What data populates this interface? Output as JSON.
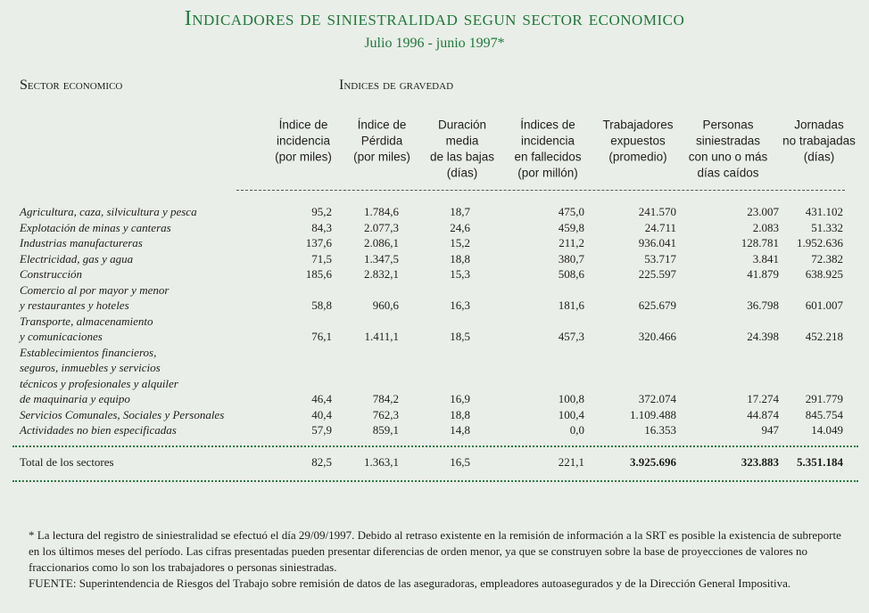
{
  "header": {
    "title": "Indicadores de siniestralidad segun sector economico",
    "subtitle": "Julio 1996 - junio 1997*"
  },
  "table": {
    "row_heading": "Sector economico",
    "group_heading": "Indices de gravedad",
    "columns": [
      [
        "Índice de",
        "incidencia",
        "(por miles)"
      ],
      [
        "Índice de",
        "Pérdida",
        "(por miles)"
      ],
      [
        "Duración",
        "media",
        "de las bajas",
        "(días)"
      ],
      [
        "Índices de",
        "incidencia",
        "en fallecidos",
        "(por millón)"
      ],
      [
        "Trabajadores",
        "expuestos",
        "(promedio)"
      ],
      [
        "Personas",
        "siniestradas",
        "con uno o más",
        "días caídos"
      ],
      [
        "Jornadas",
        "no trabajadas",
        "(días)"
      ]
    ],
    "rows": [
      {
        "label": [
          "Agricultura, caza, silvicultura y pesca"
        ],
        "values": [
          "95,2",
          "1.784,6",
          "18,7",
          "475,0",
          "241.570",
          "23.007",
          "431.102"
        ]
      },
      {
        "label": [
          "Explotación de minas y canteras"
        ],
        "values": [
          "84,3",
          "2.077,3",
          "24,6",
          "459,8",
          "24.711",
          "2.083",
          "51.332"
        ]
      },
      {
        "label": [
          "Industrias manufactureras"
        ],
        "values": [
          "137,6",
          "2.086,1",
          "15,2",
          "211,2",
          "936.041",
          "128.781",
          "1.952.636"
        ]
      },
      {
        "label": [
          "Electricidad, gas y agua"
        ],
        "values": [
          "71,5",
          "1.347,5",
          "18,8",
          "380,7",
          "53.717",
          "3.841",
          "72.382"
        ]
      },
      {
        "label": [
          "Construcción"
        ],
        "values": [
          "185,6",
          "2.832,1",
          "15,3",
          "508,6",
          "225.597",
          "41.879",
          "638.925"
        ]
      },
      {
        "label": [
          "Comercio al por mayor y menor",
          "y restaurantes y hoteles"
        ],
        "values": [
          "58,8",
          "960,6",
          "16,3",
          "181,6",
          "625.679",
          "36.798",
          "601.007"
        ]
      },
      {
        "label": [
          "Transporte, almacenamiento",
          "y comunicaciones"
        ],
        "values": [
          "76,1",
          "1.411,1",
          "18,5",
          "457,3",
          "320.466",
          "24.398",
          "452.218"
        ]
      },
      {
        "label": [
          "Establecimientos financieros,",
          "seguros, inmuebles y servicios",
          "técnicos y profesionales y alquiler",
          "de maquinaria y equipo"
        ],
        "values": [
          "46,4",
          "784,2",
          "16,9",
          "100,8",
          "372.074",
          "17.274",
          "291.779"
        ]
      },
      {
        "label": [
          "Servicios Comunales, Sociales y Personales"
        ],
        "values": [
          "40,4",
          "762,3",
          "18,8",
          "100,4",
          "1.109.488",
          "44.874",
          "845.754"
        ]
      },
      {
        "label": [
          "Actividades no bien especificadas"
        ],
        "values": [
          "57,9",
          "859,1",
          "14,8",
          "0,0",
          "16.353",
          "947",
          "14.049"
        ]
      }
    ],
    "total": {
      "label": "Total de los sectores",
      "values": [
        "82,5",
        "1.363,1",
        "16,5",
        "221,1",
        "3.925.696",
        "323.883",
        "5.351.184"
      ]
    }
  },
  "footnote": {
    "note": "* La lectura del registro de siniestralidad se efectuó el día 29/09/1997. Debido al retraso existente en la remisión de información a la SRT es posible la existencia de subreporte en los últimos meses del período. Las cifras presentadas pueden presentar diferencias de orden menor, ya que se construyen sobre la base de proyecciones de valores no fraccionarios como lo son los trabajadores o personas siniestradas.",
    "source": "FUENTE: Superintendencia de Riesgos del Trabajo sobre remisión de datos de las aseguradoras, empleadores autoasegurados y de la Dirección General Impositiva."
  }
}
